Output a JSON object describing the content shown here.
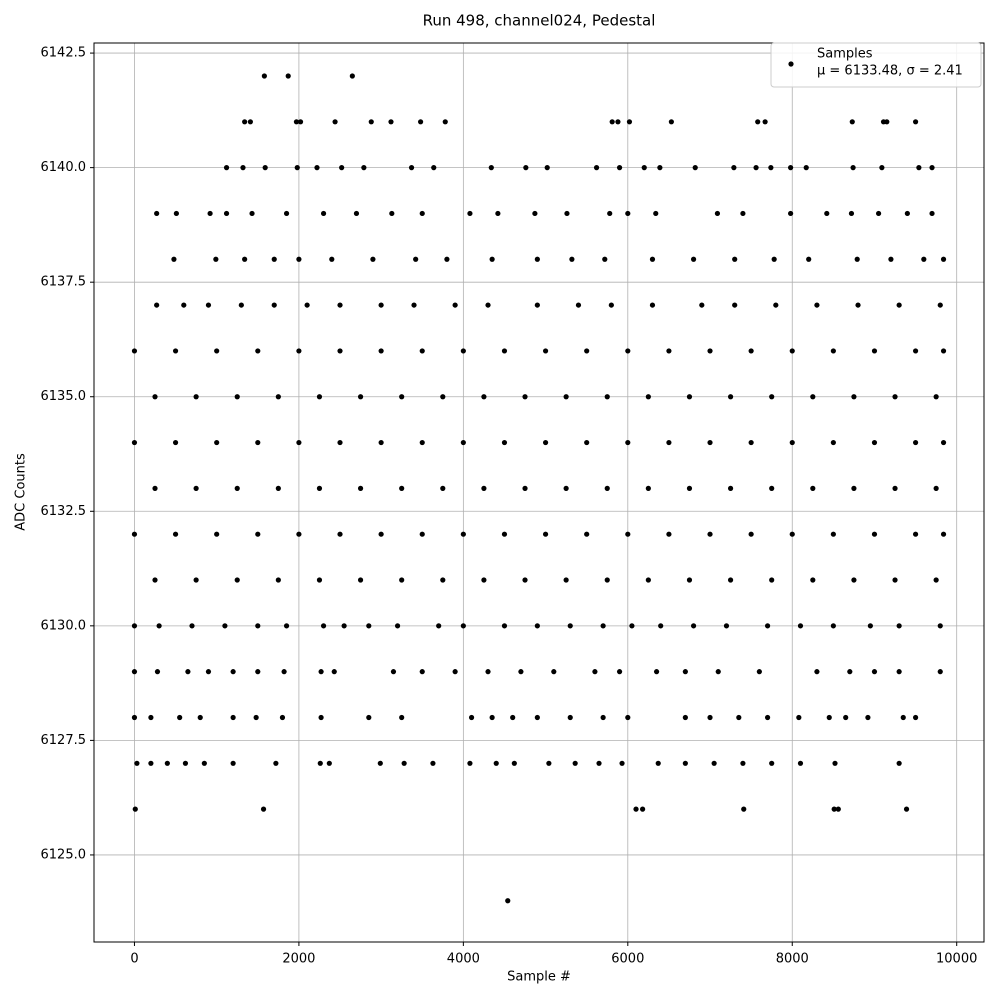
{
  "chart_data": {
    "type": "scatter",
    "title": "Run 498, channel024, Pedestal",
    "x_label": "Sample #",
    "y_label": "ADC Counts",
    "xlim": [
      -492,
      10332
    ],
    "ylim": [
      6123.1,
      6142.72
    ],
    "xticks": [
      0,
      2000,
      4000,
      6000,
      8000,
      10000
    ],
    "yticks": [
      {
        "value": 6125,
        "label": "6125.0"
      },
      {
        "value": 6127.5,
        "label": "6127.5"
      },
      {
        "value": 6130,
        "label": "6130.0"
      },
      {
        "value": 6132.5,
        "label": "6132.5"
      },
      {
        "value": 6135,
        "label": "6135.0"
      },
      {
        "value": 6137.5,
        "label": "6137.5"
      },
      {
        "value": 6140,
        "label": "6140.0"
      },
      {
        "value": 6142.5,
        "label": "6142.5"
      }
    ],
    "grid": true,
    "legend": "upper right",
    "series": [
      {
        "name": "Samples",
        "stats": "μ = 6133.48, σ = 2.41",
        "color": "#000000",
        "x": [
          1580,
          1870,
          2650,
          1340,
          1410,
          1970,
          2020,
          2440,
          2880,
          3120,
          3480,
          3780,
          5810,
          5880,
          6020,
          6530,
          7580,
          7670,
          8730,
          9110,
          9150,
          9500,
          1120,
          1320,
          1590,
          1980,
          2220,
          2520,
          2790,
          3370,
          3640,
          4340,
          4760,
          5020,
          5620,
          5900,
          6200,
          6390,
          6820,
          7290,
          7560,
          7740,
          7980,
          8170,
          8740,
          9090,
          9540,
          9700,
          270,
          510,
          920,
          1120,
          1430,
          1850,
          2300,
          2700,
          3130,
          3500,
          4080,
          4420,
          4870,
          5260,
          5780,
          6000,
          6340,
          7090,
          7400,
          7980,
          8420,
          8720,
          9050,
          9400,
          9700,
          480,
          990,
          1340,
          1700,
          2000,
          2400,
          2900,
          3420,
          3800,
          4350,
          4900,
          5320,
          5720,
          6300,
          6800,
          7300,
          7780,
          8200,
          8790,
          9200,
          9600,
          9840,
          270,
          600,
          900,
          1300,
          1700,
          2100,
          2500,
          3000,
          3400,
          3900,
          4300,
          4900,
          5400,
          5800,
          6300,
          6900,
          7300,
          7800,
          8300,
          8800,
          9300,
          9800,
          0,
          500,
          1000,
          1500,
          2000,
          2500,
          3000,
          3500,
          4000,
          4500,
          5000,
          5500,
          6000,
          6500,
          7000,
          7500,
          8000,
          8500,
          9000,
          9500,
          9840,
          250,
          750,
          1250,
          1750,
          2250,
          2750,
          3250,
          3750,
          4250,
          4750,
          5250,
          5750,
          6250,
          6750,
          7250,
          7750,
          8250,
          8750,
          9250,
          9750,
          0,
          500,
          1000,
          1500,
          2000,
          2500,
          3000,
          3500,
          4000,
          4500,
          5000,
          5500,
          6000,
          6500,
          7000,
          7500,
          8000,
          8500,
          9000,
          9500,
          9840,
          250,
          750,
          1250,
          1750,
          2250,
          2750,
          3250,
          3750,
          4250,
          4750,
          5250,
          5750,
          6250,
          6750,
          7250,
          7750,
          8250,
          8750,
          9250,
          9750,
          0,
          500,
          1000,
          1500,
          2000,
          2500,
          3000,
          3500,
          4000,
          4500,
          5000,
          5500,
          6000,
          6500,
          7000,
          7500,
          8000,
          8500,
          9000,
          9500,
          9840,
          250,
          750,
          1250,
          1750,
          2250,
          2750,
          3250,
          3750,
          4250,
          4750,
          5250,
          5750,
          6250,
          6750,
          7250,
          7750,
          8250,
          8750,
          9250,
          9750,
          0,
          300,
          700,
          1100,
          1500,
          1850,
          2300,
          2550,
          2850,
          3200,
          3700,
          4000,
          4500,
          4900,
          5300,
          5700,
          6050,
          6400,
          6800,
          7200,
          7700,
          8100,
          8500,
          8950,
          9300,
          9800,
          0,
          280,
          650,
          900,
          1200,
          1500,
          1820,
          2270,
          2430,
          3150,
          3500,
          3900,
          4300,
          4700,
          5100,
          5600,
          5900,
          6350,
          6700,
          7100,
          7600,
          8300,
          8700,
          9000,
          9300,
          9800,
          0,
          200,
          550,
          800,
          1200,
          1480,
          1800,
          2270,
          2850,
          3250,
          4100,
          4350,
          4600,
          4900,
          5300,
          5700,
          6000,
          6700,
          7000,
          7350,
          7700,
          8080,
          8450,
          8650,
          8920,
          9350,
          9500,
          30,
          200,
          400,
          620,
          850,
          1200,
          1720,
          2260,
          2370,
          2990,
          3280,
          3630,
          4080,
          4400,
          4620,
          5040,
          5360,
          5650,
          5930,
          6370,
          6700,
          7050,
          7400,
          7750,
          8100,
          8520,
          9300,
          10,
          1570,
          6100,
          6180,
          7410,
          8510,
          8560,
          9390,
          4540
        ],
        "values": [
          6142,
          6142,
          6142,
          6141,
          6141,
          6141,
          6141,
          6141,
          6141,
          6141,
          6141,
          6141,
          6141,
          6141,
          6141,
          6141,
          6141,
          6141,
          6141,
          6141,
          6141,
          6141,
          6140,
          6140,
          6140,
          6140,
          6140,
          6140,
          6140,
          6140,
          6140,
          6140,
          6140,
          6140,
          6140,
          6140,
          6140,
          6140,
          6140,
          6140,
          6140,
          6140,
          6140,
          6140,
          6140,
          6140,
          6140,
          6140,
          6139,
          6139,
          6139,
          6139,
          6139,
          6139,
          6139,
          6139,
          6139,
          6139,
          6139,
          6139,
          6139,
          6139,
          6139,
          6139,
          6139,
          6139,
          6139,
          6139,
          6139,
          6139,
          6139,
          6139,
          6139,
          6138,
          6138,
          6138,
          6138,
          6138,
          6138,
          6138,
          6138,
          6138,
          6138,
          6138,
          6138,
          6138,
          6138,
          6138,
          6138,
          6138,
          6138,
          6138,
          6138,
          6138,
          6138,
          6137,
          6137,
          6137,
          6137,
          6137,
          6137,
          6137,
          6137,
          6137,
          6137,
          6137,
          6137,
          6137,
          6137,
          6137,
          6137,
          6137,
          6137,
          6137,
          6137,
          6137,
          6137,
          6136,
          6136,
          6136,
          6136,
          6136,
          6136,
          6136,
          6136,
          6136,
          6136,
          6136,
          6136,
          6136,
          6136,
          6136,
          6136,
          6136,
          6136,
          6136,
          6136,
          6136,
          6135,
          6135,
          6135,
          6135,
          6135,
          6135,
          6135,
          6135,
          6135,
          6135,
          6135,
          6135,
          6135,
          6135,
          6135,
          6135,
          6135,
          6135,
          6135,
          6135,
          6134,
          6134,
          6134,
          6134,
          6134,
          6134,
          6134,
          6134,
          6134,
          6134,
          6134,
          6134,
          6134,
          6134,
          6134,
          6134,
          6134,
          6134,
          6134,
          6134,
          6134,
          6133,
          6133,
          6133,
          6133,
          6133,
          6133,
          6133,
          6133,
          6133,
          6133,
          6133,
          6133,
          6133,
          6133,
          6133,
          6133,
          6133,
          6133,
          6133,
          6133,
          6132,
          6132,
          6132,
          6132,
          6132,
          6132,
          6132,
          6132,
          6132,
          6132,
          6132,
          6132,
          6132,
          6132,
          6132,
          6132,
          6132,
          6132,
          6132,
          6132,
          6132,
          6131,
          6131,
          6131,
          6131,
          6131,
          6131,
          6131,
          6131,
          6131,
          6131,
          6131,
          6131,
          6131,
          6131,
          6131,
          6131,
          6131,
          6131,
          6131,
          6131,
          6130,
          6130,
          6130,
          6130,
          6130,
          6130,
          6130,
          6130,
          6130,
          6130,
          6130,
          6130,
          6130,
          6130,
          6130,
          6130,
          6130,
          6130,
          6130,
          6130,
          6130,
          6130,
          6130,
          6130,
          6130,
          6130,
          6129,
          6129,
          6129,
          6129,
          6129,
          6129,
          6129,
          6129,
          6129,
          6129,
          6129,
          6129,
          6129,
          6129,
          6129,
          6129,
          6129,
          6129,
          6129,
          6129,
          6129,
          6129,
          6129,
          6129,
          6129,
          6129,
          6128,
          6128,
          6128,
          6128,
          6128,
          6128,
          6128,
          6128,
          6128,
          6128,
          6128,
          6128,
          6128,
          6128,
          6128,
          6128,
          6128,
          6128,
          6128,
          6128,
          6128,
          6128,
          6128,
          6128,
          6128,
          6128,
          6128,
          6127,
          6127,
          6127,
          6127,
          6127,
          6127,
          6127,
          6127,
          6127,
          6127,
          6127,
          6127,
          6127,
          6127,
          6127,
          6127,
          6127,
          6127,
          6127,
          6127,
          6127,
          6127,
          6127,
          6127,
          6127,
          6127,
          6127,
          6126,
          6126,
          6126,
          6126,
          6126,
          6126,
          6126,
          6126,
          6124
        ]
      }
    ]
  }
}
